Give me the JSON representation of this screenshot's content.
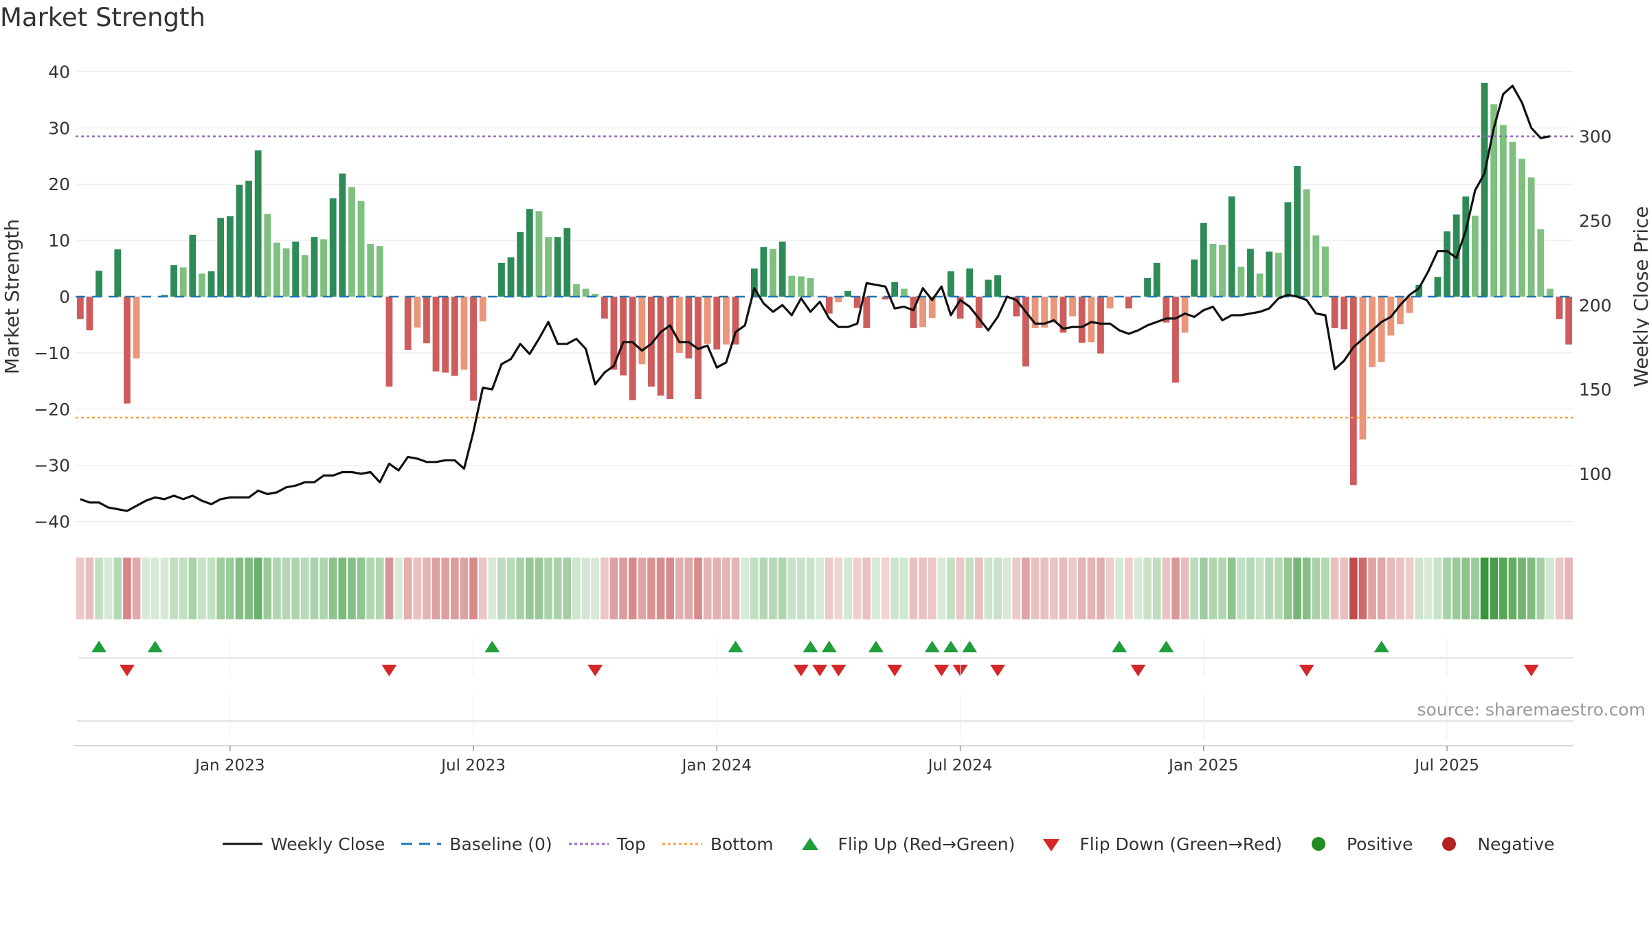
{
  "title": "Market Strength",
  "source": "source: sharemaestro.com",
  "colors": {
    "pos_dark": "#2e8b57",
    "pos_light": "#7fbf7f",
    "neg_dark": "#cd5c5c",
    "neg_light": "#e9967a",
    "close": "#111111",
    "baseline": "#1f77b4",
    "top": "#9467bd",
    "bottom": "#ff9f40",
    "flip_up": "#1f9e3a",
    "flip_down": "#d62728",
    "positive": "#228b22",
    "negative": "#b22222",
    "grid": "#e8e8e8"
  },
  "legend": {
    "weekly_close": "Weekly Close",
    "baseline": "Baseline (0)",
    "top": "Top",
    "bottom": "Bottom",
    "flip_up": "Flip Up (Red→Green)",
    "flip_down": "Flip Down (Green→Red)",
    "positive": "Positive",
    "negative": "Negative"
  },
  "chart_data": {
    "type": "bar",
    "title": "Market Strength",
    "ylabel": "Market Strength",
    "y2label": "Weekly Close Price",
    "ylim": [
      -42,
      42
    ],
    "y_ticks": [
      40,
      30,
      20,
      10,
      0,
      -10,
      -20,
      -30,
      -40
    ],
    "y_tick_labels": [
      "40",
      "30",
      "20",
      "10",
      "0",
      "−10",
      "−20",
      "−30",
      "−40"
    ],
    "y2lim": [
      65,
      345
    ],
    "y2_ticks": [
      300,
      250,
      200,
      150,
      100
    ],
    "y2_tick_labels": [
      "300",
      "250",
      "200",
      "150",
      "100"
    ],
    "x_ticks": [
      {
        "week": 16,
        "label": "Jan 2023"
      },
      {
        "week": 42,
        "label": "Jul 2023"
      },
      {
        "week": 68,
        "label": "Jan 2024"
      },
      {
        "week": 94,
        "label": "Jul 2024"
      },
      {
        "week": 120,
        "label": "Jan 2025"
      },
      {
        "week": 146,
        "label": "Jul 2025"
      }
    ],
    "grid": true,
    "top_level": 28.5,
    "bottom_level": -21.5,
    "baseline": 0,
    "strength": [
      -4,
      -6,
      4.6,
      0,
      8.4,
      -19,
      -11,
      0,
      0,
      0.3,
      5.6,
      5.2,
      11,
      4.1,
      4.5,
      14,
      14.3,
      19.9,
      20.6,
      26,
      14.7,
      9.6,
      8.6,
      9.8,
      7.4,
      10.6,
      10.2,
      17.5,
      21.9,
      19.5,
      17,
      9.4,
      9.0,
      -16,
      0,
      -9.5,
      -5.5,
      -8.3,
      -13.3,
      -13.5,
      -14.1,
      -13,
      -18.5,
      -4.4,
      0,
      6,
      7,
      11.5,
      15.6,
      15.2,
      10.6,
      10.6,
      12.2,
      2.2,
      1.4,
      0.5,
      -3.9,
      -13,
      -14,
      -18.4,
      -12,
      -16,
      -17.6,
      -18.2,
      -10,
      -11,
      -18.2,
      -8.4,
      -9.4,
      -8.5,
      -8.5,
      0,
      5,
      8.8,
      8.5,
      9.8,
      3.7,
      3.6,
      3.3,
      0,
      -3,
      -1,
      1,
      -2,
      -5.6,
      0,
      -0.5,
      2.6,
      1.4,
      -5.6,
      -5.4,
      -3.8,
      0,
      4.5,
      -3.9,
      5,
      -5.6,
      3,
      3.8,
      0,
      -3.5,
      -12.4,
      -5.6,
      -5.5,
      -4.6,
      -6.4,
      -3.5,
      -8.2,
      -8.1,
      -10.1,
      -2.1,
      0,
      -2.1,
      0,
      3.3,
      6,
      -4.6,
      -15.3,
      -6.4,
      6.6,
      13.1,
      9.4,
      9.2,
      17.8,
      5.3,
      8.5,
      4.1,
      8,
      7.8,
      16.8,
      23.2,
      19.1,
      10.9,
      8.9,
      -5.6,
      -5.8,
      -33.5,
      -25.4,
      -12.5,
      -11.6,
      -6.9,
      -4.9,
      -2.9,
      2.1,
      0,
      3.5,
      11.6,
      14.6,
      17.8,
      14.4,
      38,
      34.2,
      30.5,
      27.5,
      24.5,
      21.2,
      12,
      1.4,
      -4,
      -8.5
    ],
    "weekly_close": [
      85,
      83,
      83,
      80,
      79,
      78,
      81,
      84,
      86,
      85,
      87,
      85,
      87,
      84,
      82,
      85,
      86,
      86,
      86,
      90,
      88,
      89,
      92,
      93,
      95,
      95,
      99,
      99,
      101,
      101,
      100,
      101,
      95,
      106,
      102,
      110,
      109,
      107,
      107,
      108,
      108,
      103,
      125,
      151,
      150,
      165,
      168,
      177,
      171,
      180,
      190,
      177,
      177,
      180,
      174,
      153,
      160,
      164,
      178,
      178,
      173,
      177,
      184,
      188,
      178,
      178,
      174,
      176,
      163,
      166,
      184,
      188,
      210,
      201,
      196,
      200,
      194,
      204,
      196,
      202,
      192,
      187,
      187,
      189,
      213,
      212,
      211,
      198,
      199,
      197,
      210,
      203,
      211,
      194,
      203,
      199,
      192,
      185,
      193,
      205,
      203,
      196,
      189,
      189,
      191,
      186,
      187,
      187,
      190,
      189,
      189,
      185,
      183,
      185,
      188,
      190,
      192,
      192,
      195,
      193,
      197,
      199,
      191,
      194,
      194,
      195,
      196,
      198,
      204,
      206,
      205,
      203,
      195,
      194,
      162,
      167,
      175,
      180,
      185,
      190,
      193,
      200,
      206,
      210,
      220,
      232,
      232,
      228,
      244,
      268,
      278,
      305,
      325,
      330,
      320,
      305,
      299,
      300
    ],
    "flip_up_weeks": [
      2,
      8,
      44,
      70,
      78,
      80,
      85,
      91,
      93,
      95,
      111,
      116,
      139
    ],
    "flip_down_weeks": [
      5,
      33,
      55,
      77,
      79,
      81,
      87,
      92,
      94,
      98,
      113,
      131,
      155
    ]
  }
}
